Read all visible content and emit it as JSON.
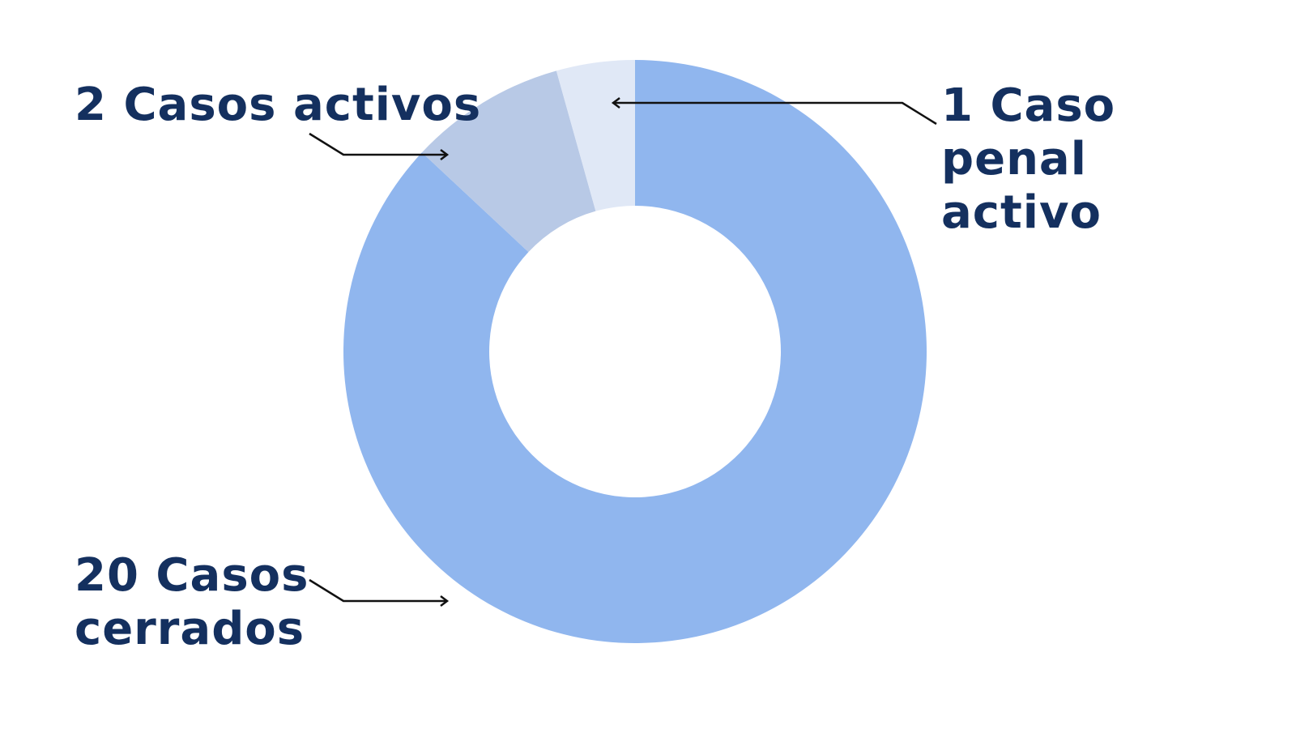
{
  "chart_data": {
    "type": "pie",
    "donut": true,
    "slices": [
      {
        "label": "20 Casos cerrados",
        "value": 20,
        "color": "#90b6ee"
      },
      {
        "label": "2 Casos activos",
        "value": 2,
        "color": "#b8c9e6"
      },
      {
        "label": "1 Caso penal activo",
        "value": 1,
        "color": "#e0e8f6"
      }
    ],
    "start": "12 o'clock",
    "direction": "clockwise",
    "annotations": {
      "activos": [
        "2 Casos activos"
      ],
      "penal": [
        "1 Caso",
        "penal",
        "activo"
      ],
      "cerrados": [
        "20 Casos",
        "cerrados"
      ]
    },
    "label_color": "#14305f",
    "arrow_color": "#111111"
  }
}
